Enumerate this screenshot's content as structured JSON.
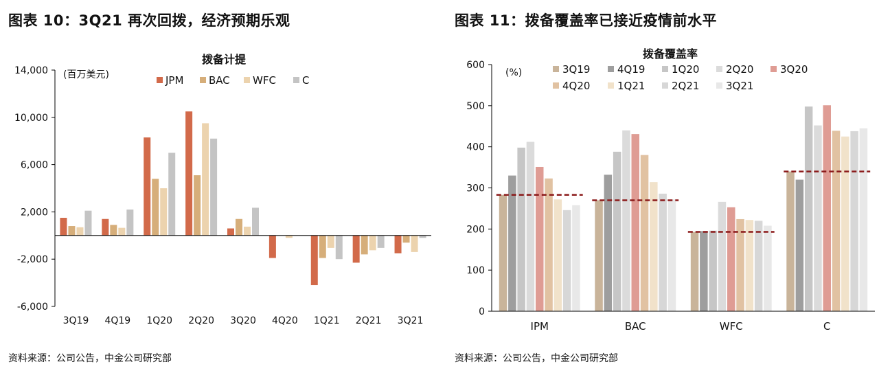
{
  "left": {
    "figure_title": "图表 10：3Q21 再次回拨，经济预期乐观",
    "source": "资料来源：公司公告，中金公司研究部"
  },
  "right": {
    "figure_title": "图表 11：拨备覆盖率已接近疫情前水平",
    "source": "资料来源：公司公告，中金公司研究部"
  },
  "chart_data": [
    {
      "type": "bar",
      "title": "拨备计提",
      "unit_label": "(百万美元)",
      "xlabel": "",
      "ylabel": "",
      "ylim": [
        -6000,
        14000
      ],
      "yticks": [
        -6000,
        -2000,
        2000,
        6000,
        10000,
        14000
      ],
      "ytick_labels": [
        "-6,000",
        "-2,000",
        "2,000",
        "6,000",
        "10,000",
        "14,000"
      ],
      "categories": [
        "3Q19",
        "4Q19",
        "1Q20",
        "2Q20",
        "3Q20",
        "4Q20",
        "1Q21",
        "2Q21",
        "3Q21"
      ],
      "legend_position": "top",
      "series": [
        {
          "name": "JPM",
          "color": "#D26A4A",
          "values": [
            1500,
            1400,
            8300,
            10500,
            600,
            -1900,
            -4200,
            -2300,
            -1500
          ]
        },
        {
          "name": "BAC",
          "color": "#D6AE7A",
          "values": [
            800,
            900,
            4800,
            5100,
            1400,
            0,
            -1900,
            -1600,
            -600
          ]
        },
        {
          "name": "WFC",
          "color": "#ECD3AE",
          "values": [
            700,
            650,
            4000,
            9500,
            750,
            -200,
            -1050,
            -1250,
            -1400
          ]
        },
        {
          "name": "C",
          "color": "#C4C4C4",
          "values": [
            2100,
            2200,
            7000,
            8200,
            2350,
            0,
            -2000,
            -1050,
            -200
          ]
        }
      ]
    },
    {
      "type": "bar",
      "title": "拨备覆盖率",
      "unit_label": "(%)",
      "xlabel": "",
      "ylabel": "",
      "ylim": [
        0,
        600
      ],
      "yticks": [
        0,
        100,
        200,
        300,
        400,
        500,
        600
      ],
      "ytick_labels": [
        "0",
        "100",
        "200",
        "300",
        "400",
        "500",
        "600"
      ],
      "categories": [
        "JPM",
        "BAC",
        "WFC",
        "C"
      ],
      "legend_position": "top",
      "series": [
        {
          "name": "3Q19",
          "color": "#C9B49A",
          "values": [
            283,
            270,
            193,
            340
          ]
        },
        {
          "name": "4Q19",
          "color": "#9E9E9E",
          "values": [
            330,
            332,
            195,
            320
          ]
        },
        {
          "name": "1Q20",
          "color": "#C6C6C6",
          "values": [
            398,
            388,
            196,
            498
          ]
        },
        {
          "name": "2Q20",
          "color": "#DBDBDB",
          "values": [
            412,
            440,
            266,
            452
          ]
        },
        {
          "name": "3Q20",
          "color": "#DF9C94",
          "values": [
            351,
            431,
            253,
            501
          ]
        },
        {
          "name": "4Q20",
          "color": "#E1C2A2",
          "values": [
            323,
            380,
            224,
            439
          ]
        },
        {
          "name": "1Q21",
          "color": "#F1E2CA",
          "values": [
            272,
            314,
            222,
            425
          ]
        },
        {
          "name": "2Q21",
          "color": "#D7D7D7",
          "values": [
            246,
            286,
            220,
            438
          ]
        },
        {
          "name": "3Q21",
          "color": "#E8E8E8",
          "values": [
            258,
            272,
            208,
            445
          ]
        }
      ],
      "reference_lines": {
        "color": "#8B1A1A",
        "style": "dashed",
        "values": [
          283,
          270,
          193,
          340
        ]
      }
    }
  ]
}
